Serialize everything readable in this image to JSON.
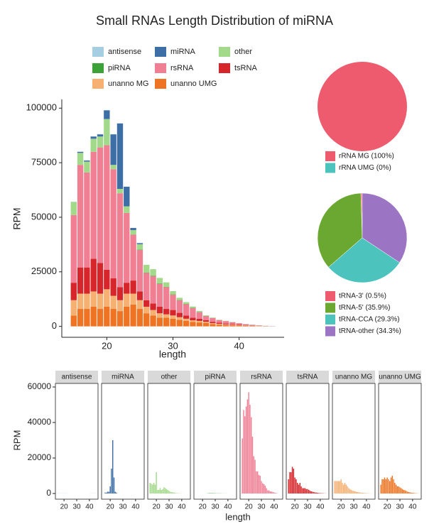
{
  "chart_data": [
    {
      "type": "stacked_bar",
      "title": "Small RNAs Length Distribution of miRNA",
      "x_label": "length",
      "y_label": "RPM",
      "x": [
        15,
        16,
        17,
        18,
        19,
        20,
        21,
        22,
        23,
        24,
        25,
        26,
        27,
        28,
        29,
        30,
        31,
        32,
        33,
        34,
        35,
        36,
        37,
        38,
        39,
        40,
        41,
        42,
        43,
        44,
        45
      ],
      "xlim": [
        13.2,
        46.8
      ],
      "xticks": [
        20,
        30,
        40
      ],
      "ylim": [
        -5000,
        104000
      ],
      "yticks": [
        0,
        25000,
        50000,
        75000,
        100000
      ],
      "series": [
        {
          "name": "antisense",
          "color": "#a6cee3",
          "values": [
            100,
            100,
            100,
            100,
            100,
            100,
            100,
            100,
            0,
            0,
            0,
            0,
            0,
            0,
            0,
            0,
            0,
            0,
            0,
            0,
            0,
            0,
            0,
            0,
            0,
            0,
            100,
            100,
            100,
            100,
            100
          ]
        },
        {
          "name": "miRNA",
          "color": "#3d6fa6",
          "values": [
            0,
            500,
            500,
            1000,
            1000,
            4000,
            14000,
            30000,
            9000,
            1000,
            500,
            0,
            0,
            0,
            0,
            0,
            0,
            0,
            0,
            0,
            0,
            0,
            0,
            0,
            0,
            0,
            0,
            0,
            0,
            0,
            0
          ]
        },
        {
          "name": "other",
          "color": "#a3d98a",
          "values": [
            6000,
            5500,
            5000,
            6000,
            5000,
            12000,
            2000,
            2000,
            3000,
            2000,
            2500,
            3500,
            3000,
            2500,
            2000,
            1500,
            1000,
            800,
            600,
            500,
            300,
            200,
            150,
            100,
            80,
            50,
            30,
            20,
            10,
            0,
            0
          ]
        },
        {
          "name": "piRNA",
          "color": "#3da13a",
          "values": [
            0,
            0,
            0,
            0,
            0,
            0,
            0,
            0,
            0,
            100,
            150,
            200,
            200,
            200,
            150,
            150,
            100,
            100,
            100,
            80,
            60,
            50,
            40,
            30,
            20,
            10,
            0,
            0,
            0,
            0,
            0
          ]
        },
        {
          "name": "rsRNA",
          "color": "#f07f94",
          "values": [
            31000,
            47000,
            43500,
            49000,
            53000,
            57000,
            50000,
            43000,
            32000,
            21000,
            19000,
            12500,
            12500,
            10500,
            10000,
            7000,
            5800,
            5200,
            4400,
            3000,
            1800,
            1700,
            1150,
            1100,
            870,
            600,
            320,
            230,
            60,
            10,
            0
          ]
        },
        {
          "name": "tsRNA",
          "color": "#d7262b",
          "values": [
            8000,
            12000,
            12000,
            15000,
            14000,
            9000,
            8000,
            6000,
            5000,
            6000,
            4000,
            3000,
            3000,
            3000,
            2500,
            2500,
            2000,
            1500,
            1200,
            1000,
            800,
            600,
            500,
            400,
            300,
            250,
            200,
            150,
            100,
            60,
            30
          ]
        },
        {
          "name": "unanno MG",
          "color": "#f5b072",
          "values": [
            7000,
            7000,
            7000,
            7000,
            7000,
            8000,
            6000,
            5000,
            6000,
            5000,
            4000,
            3000,
            2500,
            2000,
            1500,
            1500,
            1200,
            1000,
            800,
            700,
            600,
            500,
            400,
            300,
            250,
            200,
            150,
            100,
            80,
            50,
            30
          ]
        },
        {
          "name": "unanno UMG",
          "color": "#ee7424",
          "values": [
            5000,
            8000,
            8000,
            9000,
            8000,
            9000,
            8000,
            7000,
            9000,
            10000,
            8000,
            6000,
            5000,
            4000,
            4000,
            3500,
            3000,
            2500,
            2000,
            1800,
            1500,
            1000,
            800,
            600,
            500,
            400,
            300,
            200,
            150,
            80,
            40
          ]
        }
      ]
    },
    {
      "type": "pie",
      "labels": [
        "rRNA MG (100%)",
        "rRNA UMG (0%)"
      ],
      "values": [
        100,
        0
      ],
      "colors": [
        "#ef5b6e",
        "#4cc3bc"
      ]
    },
    {
      "type": "pie",
      "labels": [
        "tRNA-3' (0.5%)",
        "tRNA-5' (35.9%)",
        "tRNA-CCA (29.3%)",
        "tRNA-other (34.3%)"
      ],
      "values": [
        0.5,
        35.9,
        29.3,
        34.3
      ],
      "colors": [
        "#ef5b6e",
        "#6aa832",
        "#4cc3bc",
        "#9b74c4"
      ]
    },
    {
      "type": "facet_bar",
      "x_label": "length",
      "y_label": "RPM",
      "xlim": [
        13.2,
        46.8
      ],
      "xticks": [
        20,
        30,
        40
      ],
      "ylim": [
        -3200,
        62000
      ],
      "yticks": [
        0,
        20000,
        40000,
        60000
      ]
    }
  ]
}
